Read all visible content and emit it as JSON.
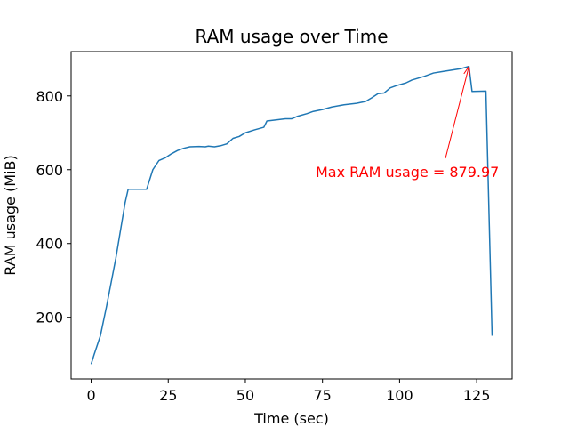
{
  "chart_data": {
    "type": "line",
    "title": "RAM usage over Time",
    "x_label": "Time (sec)",
    "y_label": "RAM usage (MiB)",
    "annotation": "Max RAM usage = 879.97",
    "annotation_color": "#ff0000",
    "color": "#1f77b4",
    "x": [
      0,
      1,
      3,
      5,
      8,
      10,
      11,
      12,
      14,
      18,
      20,
      22,
      24,
      26,
      28,
      30,
      32,
      35,
      37,
      38,
      40,
      42,
      44,
      46,
      48,
      50,
      53,
      56,
      57,
      60,
      63,
      65,
      67,
      70,
      72,
      75,
      78,
      82,
      86,
      89,
      91,
      93,
      95,
      97,
      99,
      102,
      104,
      108,
      111,
      114,
      117,
      120,
      122.5,
      123.5,
      128,
      130
    ],
    "values": [
      73,
      100,
      150,
      230,
      360,
      460,
      510,
      547,
      547,
      547,
      600,
      625,
      632,
      643,
      652,
      658,
      662,
      663,
      662,
      664,
      662,
      665,
      670,
      685,
      690,
      700,
      708,
      715,
      732,
      735,
      738,
      738,
      745,
      752,
      758,
      763,
      770,
      776,
      780,
      785,
      795,
      806,
      808,
      822,
      828,
      835,
      843,
      853,
      862,
      866,
      870,
      874,
      879.97,
      812,
      813,
      150
    ],
    "xlim": [
      -6.5,
      136.5
    ],
    "xticks": [
      0,
      25,
      50,
      75,
      100,
      125
    ],
    "ylim": [
      33,
      920
    ],
    "yticks": [
      200,
      400,
      600,
      800
    ],
    "grid": false
  }
}
